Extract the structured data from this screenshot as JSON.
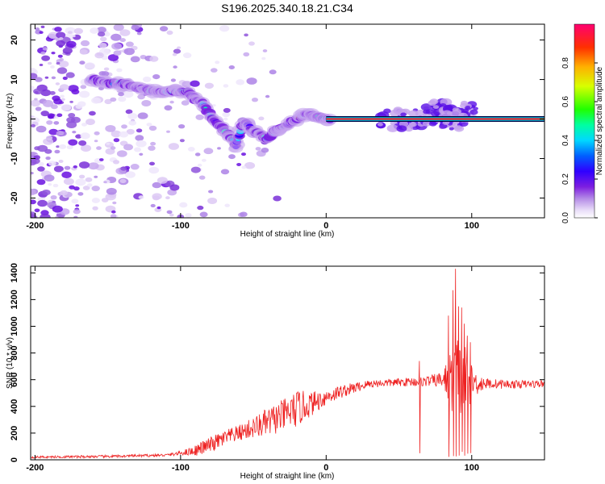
{
  "chart_data": [
    {
      "type": "heatmap",
      "title": "S196.2025.340.18.21.C34",
      "xlabel": "Height of straight line (km)",
      "ylabel": "Frequency (Hz)",
      "xlim": [
        -203,
        150
      ],
      "ylim": [
        -25,
        24
      ],
      "x_ticks": [
        -200,
        -100,
        0,
        100
      ],
      "y_ticks": [
        -20,
        -10,
        0,
        10,
        20
      ],
      "colorbar": {
        "label": "Normalized spectral amplitude",
        "range": [
          0.0,
          1.0
        ],
        "ticks": [
          0.0,
          0.2,
          0.4,
          0.6,
          0.8
        ],
        "tick_labels": [
          "0.0",
          "0.2",
          "0.4",
          "0.6",
          "0.8"
        ],
        "colormap": [
          "#ffffff",
          "#e6d8f6",
          "#b48ae6",
          "#7d1fe0",
          "#4b00ff",
          "#0050ff",
          "#00d8ff",
          "#00ff90",
          "#40ff00",
          "#d8ff00",
          "#ffd000",
          "#ff6000",
          "#ff0060"
        ]
      },
      "ridge": {
        "x": [
          -160,
          -150,
          -140,
          -130,
          -120,
          -110,
          -100,
          -95,
          -90,
          -85,
          -80,
          -75,
          -70,
          -65,
          -62,
          -58,
          -55,
          -50,
          -45,
          -40,
          -35,
          -30,
          -25,
          -20,
          -15,
          -10,
          -5,
          0,
          100,
          150
        ],
        "y": [
          10,
          9,
          9,
          8,
          7,
          7,
          7,
          7,
          5,
          4,
          1,
          -1,
          -3,
          -5,
          -7,
          -2,
          -1,
          -3,
          -4,
          -5,
          -3,
          -2,
          -1,
          0,
          1,
          1,
          0.5,
          0,
          0,
          0
        ]
      },
      "steady_line": {
        "from": 0,
        "to": 150,
        "frequency": 0
      }
    },
    {
      "type": "line",
      "xlabel": "Height of straight line (km)",
      "ylabel": "SNR (10 * v/v)",
      "xlim": [
        -203,
        150
      ],
      "ylim": [
        0,
        1450
      ],
      "x_ticks": [
        -200,
        -100,
        0,
        100
      ],
      "y_ticks": [
        0,
        200,
        400,
        600,
        800,
        1000,
        1200,
        1400
      ],
      "line_color": "#ee2222",
      "envelope": {
        "x": [
          -203,
          -150,
          -110,
          -100,
          -90,
          -80,
          -70,
          -60,
          -50,
          -40,
          -30,
          -20,
          -10,
          0,
          10,
          20,
          30,
          50,
          70,
          80,
          85,
          90,
          95,
          100,
          110,
          130,
          150
        ],
        "base": [
          20,
          25,
          35,
          50,
          70,
          110,
          160,
          200,
          240,
          280,
          330,
          380,
          420,
          470,
          510,
          540,
          570,
          580,
          590,
          600,
          600,
          600,
          590,
          580,
          570,
          565,
          570
        ],
        "noise": [
          8,
          10,
          10,
          15,
          40,
          60,
          60,
          60,
          80,
          110,
          120,
          140,
          90,
          60,
          50,
          40,
          30,
          30,
          40,
          60,
          200,
          350,
          300,
          120,
          40,
          30,
          30
        ]
      },
      "spikes": [
        {
          "x": 64,
          "y": 740
        },
        {
          "x": 84,
          "y": 1080
        },
        {
          "x": 87,
          "y": 1270
        },
        {
          "x": 89,
          "y": 1430
        },
        {
          "x": 91,
          "y": 1150
        },
        {
          "x": 93,
          "y": 1140
        },
        {
          "x": 95,
          "y": 1020
        },
        {
          "x": 97,
          "y": 930
        },
        {
          "x": 99,
          "y": 880
        }
      ]
    }
  ]
}
